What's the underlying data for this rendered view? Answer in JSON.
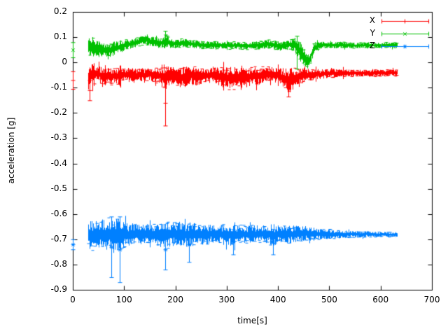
{
  "figure": {
    "background": "#ffffff",
    "border_color": "#000000"
  },
  "chart_data": {
    "type": "scatter",
    "style": "errorbars",
    "title": "",
    "xlabel": "time[s]",
    "ylabel": "acceleration [g]",
    "xlim": [
      0,
      700
    ],
    "ylim": [
      -0.9,
      0.2
    ],
    "xticks": [
      "0",
      "100",
      "200",
      "300",
      "400",
      "500",
      "600",
      "700"
    ],
    "yticks": [
      "0.2",
      "0.1",
      "0",
      "-0.1",
      "-0.2",
      "-0.3",
      "-0.4",
      "-0.5",
      "-0.6",
      "-0.7",
      "-0.8",
      "-0.9"
    ],
    "grid": false,
    "legend_position": "top-right",
    "series": [
      {
        "name": "X",
        "color": "#ff0000",
        "marker": "plus",
        "band": [
          [
            30,
            -0.06,
            0.05
          ],
          [
            36,
            -0.05,
            0.045
          ],
          [
            42,
            -0.045,
            0.04
          ],
          [
            50,
            -0.04,
            0.03
          ],
          [
            58,
            -0.06,
            0.04
          ],
          [
            66,
            -0.05,
            0.035
          ],
          [
            74,
            -0.055,
            0.035
          ],
          [
            82,
            -0.05,
            0.03
          ],
          [
            90,
            -0.055,
            0.035
          ],
          [
            100,
            -0.045,
            0.025
          ],
          [
            110,
            -0.05,
            0.03
          ],
          [
            120,
            -0.05,
            0.03
          ],
          [
            130,
            -0.045,
            0.025
          ],
          [
            140,
            -0.05,
            0.03
          ],
          [
            150,
            -0.045,
            0.025
          ],
          [
            160,
            -0.05,
            0.03
          ],
          [
            170,
            -0.05,
            0.03
          ],
          [
            180,
            -0.06,
            0.05
          ],
          [
            190,
            -0.05,
            0.035
          ],
          [
            200,
            -0.05,
            0.035
          ],
          [
            210,
            -0.06,
            0.045
          ],
          [
            220,
            -0.055,
            0.04
          ],
          [
            230,
            -0.05,
            0.035
          ],
          [
            240,
            -0.055,
            0.04
          ],
          [
            250,
            -0.05,
            0.035
          ],
          [
            260,
            -0.05,
            0.03
          ],
          [
            270,
            -0.05,
            0.03
          ],
          [
            280,
            -0.05,
            0.035
          ],
          [
            290,
            -0.055,
            0.04
          ],
          [
            300,
            -0.06,
            0.045
          ],
          [
            310,
            -0.065,
            0.05
          ],
          [
            320,
            -0.055,
            0.04
          ],
          [
            330,
            -0.05,
            0.035
          ],
          [
            340,
            -0.06,
            0.04
          ],
          [
            350,
            -0.05,
            0.035
          ],
          [
            360,
            -0.055,
            0.04
          ],
          [
            370,
            -0.05,
            0.035
          ],
          [
            380,
            -0.045,
            0.03
          ],
          [
            390,
            -0.045,
            0.03
          ],
          [
            400,
            -0.05,
            0.035
          ],
          [
            410,
            -0.06,
            0.04
          ],
          [
            420,
            -0.07,
            0.05
          ],
          [
            430,
            -0.065,
            0.045
          ],
          [
            440,
            -0.055,
            0.035
          ],
          [
            450,
            -0.05,
            0.03
          ],
          [
            460,
            -0.048,
            0.025
          ],
          [
            470,
            -0.045,
            0.022
          ],
          [
            480,
            -0.045,
            0.02
          ],
          [
            500,
            -0.042,
            0.018
          ],
          [
            520,
            -0.04,
            0.016
          ],
          [
            540,
            -0.042,
            0.015
          ],
          [
            560,
            -0.04,
            0.014
          ],
          [
            580,
            -0.042,
            0.014
          ],
          [
            600,
            -0.04,
            0.013
          ],
          [
            632,
            -0.04,
            0.013
          ]
        ],
        "outliers": [
          [
            0,
            -0.07,
            0.035
          ],
          [
            33,
            -0.11,
            0.04
          ],
          [
            180,
            -0.16,
            0.09
          ],
          [
            420,
            -0.1,
            0.035
          ]
        ]
      },
      {
        "name": "Y",
        "color": "#00c000",
        "marker": "cross",
        "band": [
          [
            30,
            0.06,
            0.04
          ],
          [
            38,
            0.065,
            0.04
          ],
          [
            46,
            0.06,
            0.035
          ],
          [
            54,
            0.05,
            0.03
          ],
          [
            62,
            0.048,
            0.028
          ],
          [
            70,
            0.05,
            0.028
          ],
          [
            78,
            0.055,
            0.028
          ],
          [
            86,
            0.06,
            0.026
          ],
          [
            94,
            0.065,
            0.024
          ],
          [
            102,
            0.07,
            0.022
          ],
          [
            112,
            0.075,
            0.02
          ],
          [
            122,
            0.08,
            0.02
          ],
          [
            132,
            0.088,
            0.02
          ],
          [
            142,
            0.09,
            0.02
          ],
          [
            152,
            0.085,
            0.02
          ],
          [
            162,
            0.08,
            0.02
          ],
          [
            172,
            0.078,
            0.02
          ],
          [
            180,
            0.085,
            0.028
          ],
          [
            190,
            0.078,
            0.02
          ],
          [
            200,
            0.075,
            0.018
          ],
          [
            215,
            0.078,
            0.018
          ],
          [
            230,
            0.075,
            0.016
          ],
          [
            245,
            0.072,
            0.016
          ],
          [
            260,
            0.07,
            0.015
          ],
          [
            275,
            0.07,
            0.015
          ],
          [
            290,
            0.07,
            0.015
          ],
          [
            305,
            0.068,
            0.015
          ],
          [
            320,
            0.07,
            0.015
          ],
          [
            335,
            0.066,
            0.015
          ],
          [
            350,
            0.068,
            0.015
          ],
          [
            365,
            0.07,
            0.016
          ],
          [
            380,
            0.074,
            0.018
          ],
          [
            395,
            0.07,
            0.018
          ],
          [
            405,
            0.065,
            0.018
          ],
          [
            415,
            0.068,
            0.018
          ],
          [
            425,
            0.072,
            0.02
          ],
          [
            433,
            0.07,
            0.03
          ],
          [
            440,
            0.05,
            0.035
          ],
          [
            448,
            0.03,
            0.035
          ],
          [
            455,
            0.005,
            0.03
          ],
          [
            461,
            0.012,
            0.03
          ],
          [
            466,
            0.04,
            0.03
          ],
          [
            471,
            0.06,
            0.022
          ],
          [
            478,
            0.068,
            0.016
          ],
          [
            490,
            0.07,
            0.013
          ],
          [
            510,
            0.069,
            0.012
          ],
          [
            530,
            0.07,
            0.012
          ],
          [
            550,
            0.068,
            0.011
          ],
          [
            570,
            0.07,
            0.011
          ],
          [
            590,
            0.069,
            0.011
          ],
          [
            610,
            0.07,
            0.011
          ],
          [
            632,
            0.07,
            0.011
          ]
        ],
        "outliers": [
          [
            0,
            0.05,
            0.03
          ],
          [
            180,
            0.105,
            0.02
          ],
          [
            437,
            0.04,
            0.065
          ]
        ]
      },
      {
        "name": "Z",
        "color": "#0080ff",
        "marker": "star",
        "band": [
          [
            30,
            -0.68,
            0.055
          ],
          [
            38,
            -0.685,
            0.065
          ],
          [
            46,
            -0.68,
            0.06
          ],
          [
            54,
            -0.68,
            0.06
          ],
          [
            62,
            -0.682,
            0.062
          ],
          [
            70,
            -0.68,
            0.068
          ],
          [
            78,
            -0.682,
            0.065
          ],
          [
            86,
            -0.68,
            0.068
          ],
          [
            94,
            -0.682,
            0.062
          ],
          [
            102,
            -0.68,
            0.05
          ],
          [
            112,
            -0.678,
            0.045
          ],
          [
            122,
            -0.676,
            0.04
          ],
          [
            132,
            -0.68,
            0.04
          ],
          [
            142,
            -0.678,
            0.04
          ],
          [
            152,
            -0.68,
            0.042
          ],
          [
            162,
            -0.68,
            0.04
          ],
          [
            172,
            -0.682,
            0.05
          ],
          [
            182,
            -0.68,
            0.058
          ],
          [
            192,
            -0.678,
            0.05
          ],
          [
            202,
            -0.676,
            0.048
          ],
          [
            212,
            -0.68,
            0.05
          ],
          [
            222,
            -0.682,
            0.052
          ],
          [
            232,
            -0.68,
            0.048
          ],
          [
            242,
            -0.676,
            0.042
          ],
          [
            252,
            -0.68,
            0.042
          ],
          [
            262,
            -0.68,
            0.04
          ],
          [
            272,
            -0.677,
            0.037
          ],
          [
            282,
            -0.676,
            0.035
          ],
          [
            292,
            -0.68,
            0.04
          ],
          [
            302,
            -0.68,
            0.042
          ],
          [
            312,
            -0.682,
            0.045
          ],
          [
            322,
            -0.677,
            0.036
          ],
          [
            332,
            -0.678,
            0.035
          ],
          [
            342,
            -0.68,
            0.036
          ],
          [
            352,
            -0.677,
            0.034
          ],
          [
            362,
            -0.676,
            0.034
          ],
          [
            372,
            -0.678,
            0.036
          ],
          [
            382,
            -0.68,
            0.04
          ],
          [
            392,
            -0.682,
            0.044
          ],
          [
            402,
            -0.677,
            0.035
          ],
          [
            412,
            -0.676,
            0.032
          ],
          [
            422,
            -0.68,
            0.038
          ],
          [
            432,
            -0.679,
            0.034
          ],
          [
            442,
            -0.676,
            0.03
          ],
          [
            452,
            -0.677,
            0.028
          ],
          [
            462,
            -0.678,
            0.026
          ],
          [
            472,
            -0.677,
            0.024
          ],
          [
            482,
            -0.678,
            0.022
          ],
          [
            492,
            -0.678,
            0.02
          ],
          [
            502,
            -0.678,
            0.019
          ],
          [
            512,
            -0.679,
            0.018
          ],
          [
            522,
            -0.68,
            0.016
          ],
          [
            532,
            -0.679,
            0.015
          ],
          [
            542,
            -0.678,
            0.014
          ],
          [
            552,
            -0.68,
            0.013
          ],
          [
            562,
            -0.679,
            0.012
          ],
          [
            572,
            -0.678,
            0.012
          ],
          [
            582,
            -0.679,
            0.011
          ],
          [
            592,
            -0.68,
            0.011
          ],
          [
            602,
            -0.679,
            0.01
          ],
          [
            612,
            -0.68,
            0.01
          ],
          [
            622,
            -0.68,
            0.01
          ],
          [
            632,
            -0.68,
            0.01
          ]
        ],
        "outliers": [
          [
            0,
            -0.72,
            0.02
          ],
          [
            75,
            -0.73,
            0.12
          ],
          [
            92,
            -0.74,
            0.13
          ],
          [
            180,
            -0.74,
            0.08
          ],
          [
            227,
            -0.72,
            0.07
          ],
          [
            312,
            -0.71,
            0.05
          ],
          [
            390,
            -0.71,
            0.05
          ]
        ]
      }
    ]
  }
}
